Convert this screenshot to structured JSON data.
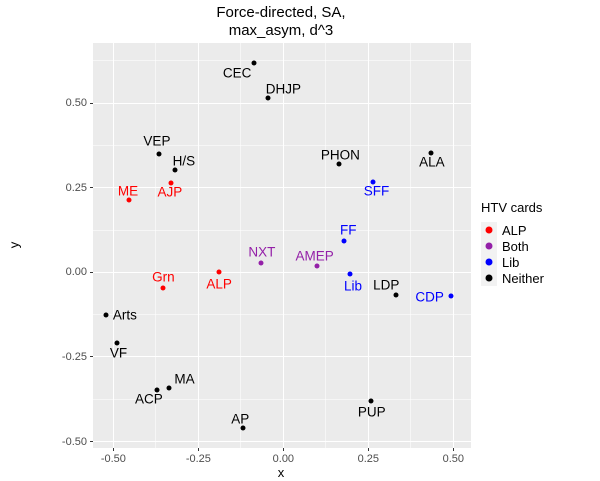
{
  "title": {
    "line1": "Force-directed, SA,",
    "line2": "max_asym, d^3"
  },
  "colors": {
    "panel_bg": "#EBEBEB",
    "grid": "#FFFFFF",
    "tick_text": "#4D4D4D",
    "tick_mark": "#333333",
    "alp_red": "#FF0000",
    "both_purple": "#9420A8",
    "lib_blue": "#0000FF",
    "neither_black": "#000000"
  },
  "chart_data": {
    "type": "scatter",
    "title": "Force-directed, SA, max_asym, d^3",
    "xlabel": "x",
    "ylabel": "y",
    "xlim": [
      -0.56,
      0.552
    ],
    "ylim": [
      -0.519,
      0.678
    ],
    "x_ticks": [
      -0.5,
      -0.25,
      0,
      0.25,
      0.5
    ],
    "x_tick_labels": [
      "-0.50",
      "-0.25",
      "0.00",
      "0.25",
      "0.50"
    ],
    "y_ticks": [
      -0.5,
      -0.25,
      0,
      0.25,
      0.5
    ],
    "y_tick_labels": [
      "-0.50",
      "-0.25",
      "0.00",
      "0.25",
      "0.50"
    ],
    "x_minor_ticks": [
      -0.375,
      -0.125,
      0.125,
      0.375
    ],
    "y_minor_ticks": [
      -0.375,
      -0.125,
      0.125,
      0.375,
      0.625
    ],
    "grid": true,
    "legend_title": "HTV cards",
    "legend_position": "right",
    "series": [
      {
        "name": "ALP",
        "color": "#FF0000",
        "points": [
          {
            "label": "ME",
            "x": -0.454,
            "y": 0.214,
            "label_dx": -1,
            "label_dy": -9
          },
          {
            "label": "AJP",
            "x": -0.331,
            "y": 0.265,
            "label_dx": -1,
            "label_dy": 9
          },
          {
            "label": "Grn",
            "x": -0.353,
            "y": -0.046,
            "label_dx": 0,
            "label_dy": -11
          },
          {
            "label": "ALP",
            "x": -0.189,
            "y": 0.002,
            "label_dx": 0,
            "label_dy": 12
          }
        ]
      },
      {
        "name": "Both",
        "color": "#9420A8",
        "points": [
          {
            "label": "NXT",
            "x": -0.066,
            "y": 0.027,
            "label_dx": 1,
            "label_dy": -11
          },
          {
            "label": "AMEP",
            "x": 0.098,
            "y": 0.02,
            "label_dx": -2,
            "label_dy": -10
          }
        ]
      },
      {
        "name": "Lib",
        "color": "#0000FF",
        "points": [
          {
            "label": "SFF",
            "x": 0.265,
            "y": 0.268,
            "label_dx": 3,
            "label_dy": 9
          },
          {
            "label": "FF",
            "x": 0.179,
            "y": 0.094,
            "label_dx": 4,
            "label_dy": -11
          },
          {
            "label": "Lib",
            "x": 0.196,
            "y": -0.004,
            "label_dx": 3,
            "label_dy": 12
          },
          {
            "label": "CDP",
            "x": 0.492,
            "y": -0.069,
            "label_dx": -21,
            "label_dy": 1
          }
        ]
      },
      {
        "name": "Neither",
        "color": "#000000",
        "points": [
          {
            "label": "CEC",
            "x": -0.086,
            "y": 0.62,
            "label_dx": -17,
            "label_dy": 10
          },
          {
            "label": "DHJP",
            "x": -0.044,
            "y": 0.515,
            "label_dx": 15,
            "label_dy": -9
          },
          {
            "label": "VEP",
            "x": -0.366,
            "y": 0.349,
            "label_dx": -2,
            "label_dy": -13
          },
          {
            "label": "H/S",
            "x": -0.319,
            "y": 0.303,
            "label_dx": 9,
            "label_dy": -9
          },
          {
            "label": "PHON",
            "x": 0.165,
            "y": 0.32,
            "label_dx": 1,
            "label_dy": -9
          },
          {
            "label": "ALA",
            "x": 0.434,
            "y": 0.354,
            "label_dx": 1,
            "label_dy": 9
          },
          {
            "label": "LDP",
            "x": 0.332,
            "y": -0.066,
            "label_dx": -10,
            "label_dy": -10
          },
          {
            "label": "Arts",
            "x": -0.522,
            "y": -0.125,
            "label_dx": 19,
            "label_dy": 0
          },
          {
            "label": "VF",
            "x": -0.488,
            "y": -0.21,
            "label_dx": 1,
            "label_dy": 10
          },
          {
            "label": "MA",
            "x": -0.335,
            "y": -0.342,
            "label_dx": 15,
            "label_dy": -9
          },
          {
            "label": "ACP",
            "x": -0.372,
            "y": -0.347,
            "label_dx": -8,
            "label_dy": 9
          },
          {
            "label": "AP",
            "x": -0.118,
            "y": -0.461,
            "label_dx": -3,
            "label_dy": -9
          },
          {
            "label": "PUP",
            "x": 0.257,
            "y": -0.379,
            "label_dx": 1,
            "label_dy": 11
          }
        ]
      }
    ]
  }
}
